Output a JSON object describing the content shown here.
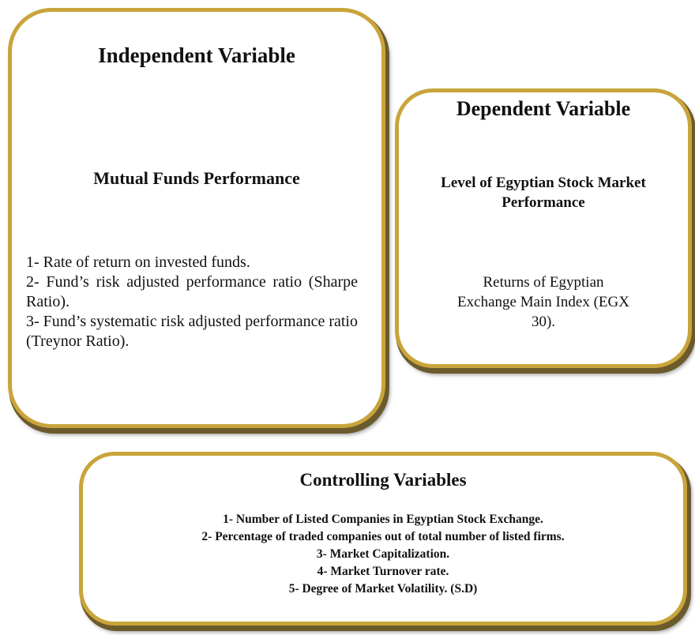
{
  "independent": {
    "title": "Independent Variable",
    "subtitle": "Mutual Funds Performance",
    "items": [
      "1- Rate of return on invested funds.",
      "2- Fund’s risk adjusted performance ratio (Sharpe Ratio).",
      "3- Fund’s systematic risk adjusted performance ratio (Treynor Ratio)."
    ]
  },
  "dependent": {
    "title": "Dependent Variable",
    "subtitle": "Level of Egyptian Stock Market Performance",
    "body": "Returns of Egyptian Exchange Main Index (EGX 30)."
  },
  "controlling": {
    "title": "Controlling Variables",
    "items": [
      "1- Number of Listed Companies in Egyptian Stock Exchange.",
      "2- Percentage of traded companies out of total number of listed firms.",
      "3- Market Capitalization.",
      "4- Market Turnover rate.",
      "5- Degree of Market Volatility. (S.D)"
    ]
  }
}
